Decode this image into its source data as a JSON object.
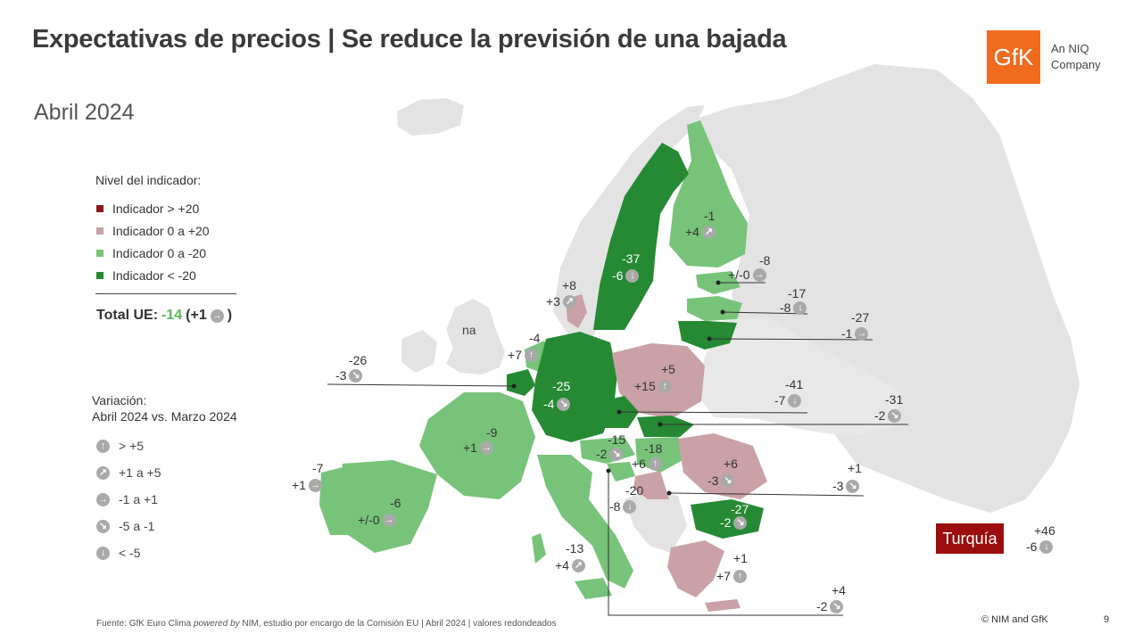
{
  "header": {
    "title": "Expectativas de precios | Se reduce la previsión de una bajada",
    "subtitle": "Abril 2024",
    "logo_text": "GfK",
    "logo_tagline_1": "An NIQ",
    "logo_tagline_2": "Company"
  },
  "legend": {
    "title": "Nivel del indicador:",
    "items": [
      {
        "label": "Indicador > +20",
        "color": "#8b1a1a"
      },
      {
        "label": "Indicador 0 a +20",
        "color": "#c9a1a6"
      },
      {
        "label": "Indicador 0 a -20",
        "color": "#78c37a"
      },
      {
        "label": "Indicador < -20",
        "color": "#258a33"
      }
    ]
  },
  "total": {
    "label": "Total UE:",
    "value": "-14",
    "change_prefix": "(+1",
    "change_suffix": ")"
  },
  "variation_legend": {
    "title_1": "Variación:",
    "title_2": "Abril 2024 vs. Marzo 2024",
    "items": [
      {
        "icon": "arrow-up-icon",
        "label": "> +5"
      },
      {
        "icon": "arrow-up-right-icon",
        "label": "+1 a +5"
      },
      {
        "icon": "arrow-right-icon",
        "label": "-1 a +1"
      },
      {
        "icon": "arrow-down-right-icon",
        "label": "-5 a -1"
      },
      {
        "icon": "arrow-down-icon",
        "label": "< -5"
      }
    ]
  },
  "map": {
    "na_label": "na",
    "turkey_label": "Turquía",
    "values": {
      "finland": {
        "value": "-1",
        "change": "+4"
      },
      "sweden": {
        "value": "-37",
        "change": "-6"
      },
      "estonia": {
        "value": "-8",
        "change": "+/-0"
      },
      "latvia": {
        "value": "-17",
        "change": "-8"
      },
      "lithuania": {
        "value": "-27",
        "change": "-1"
      },
      "denmark": {
        "value": "+8",
        "change": "+3"
      },
      "netherlands": {
        "value": "-4",
        "change": "+7"
      },
      "belgium": {
        "value": "-26",
        "change": "-3"
      },
      "luxembourg": {
        "value": "-25",
        "change": "-4"
      },
      "poland": {
        "value": "+5",
        "change": "+15"
      },
      "czechia": {
        "value": "-41",
        "change": "-7"
      },
      "slovakia": {
        "value": "-31",
        "change": "-2"
      },
      "france": {
        "value": "-9",
        "change": "+1"
      },
      "portugal": {
        "value": "-7",
        "change": "+1"
      },
      "spain": {
        "value": "-6",
        "change": "+/-0"
      },
      "austria": {
        "value": "-15",
        "change": "-2"
      },
      "hungary": {
        "value": "-18",
        "change": "+6"
      },
      "romania": {
        "value": "+6",
        "change": "-3"
      },
      "croatia": {
        "value": "+1",
        "change": "-3"
      },
      "slovenia": {
        "value": "-20",
        "change": "-8"
      },
      "bulgaria": {
        "value": "-27",
        "change": "-2"
      },
      "italy": {
        "value": "-13",
        "change": "+4"
      },
      "greece": {
        "value": "+1",
        "change": "+7"
      },
      "malta": {
        "value": "+4",
        "change": "-2"
      },
      "turkey": {
        "value": "+46",
        "change": "-6"
      }
    }
  },
  "footer": {
    "source_1": "Fuente: GfK Euro Clima",
    "source_2": "powered by",
    "source_3": "NIM,  estudio por encargo de la Comisión  EU | Abril 2024 | valores redondeados",
    "copyright": "© NIM and GfK",
    "page": "9"
  }
}
